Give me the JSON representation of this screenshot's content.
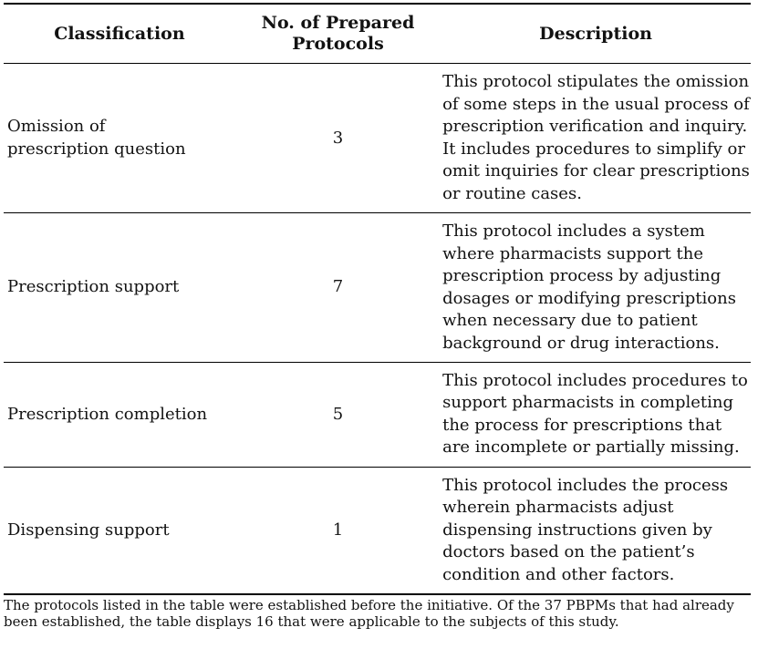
{
  "table": {
    "headers": {
      "classification": "Classification",
      "count": "No. of Prepared Protocols",
      "description": "Description"
    },
    "rows": [
      {
        "classification": "Omission of prescription question",
        "count": "3",
        "description": "This protocol stipulates the omission of some steps in the usual process of prescription verification and inquiry. It includes procedures to simplify or omit inquiries for clear prescriptions or routine cases."
      },
      {
        "classification": "Prescription support",
        "count": "7",
        "description": "This protocol includes a system where pharmacists support the prescription process by adjusting dosages or modifying prescriptions when necessary due to patient background or drug interactions."
      },
      {
        "classification": "Prescription completion",
        "count": "5",
        "description": "This protocol includes procedures to support pharmacists in completing the process for prescriptions that are incomplete or partially missing."
      },
      {
        "classification": "Dispensing support",
        "count": "1",
        "description": "This protocol includes the process wherein pharmacists adjust dispensing instructions given by doctors based on the patient’s condition and other factors."
      }
    ],
    "footnote": "The protocols listed in the table were established before the initiative. Of the 37 PBPMs that had already been established, the table displays 16 that were applicable to the subjects of this study."
  },
  "colors": {
    "background": "#ffffff",
    "text": "#121212",
    "rule": "#000000"
  }
}
